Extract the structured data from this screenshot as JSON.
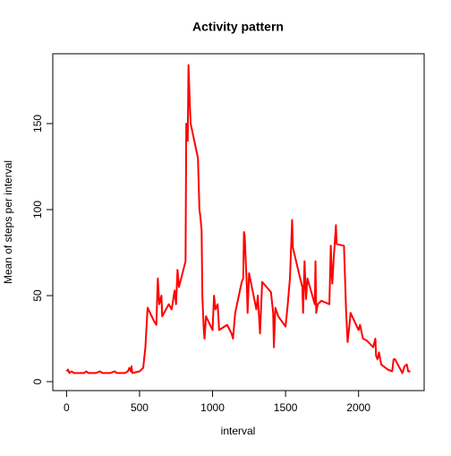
{
  "chart_data": {
    "type": "line",
    "title": "Activity pattern",
    "x_label": "interval",
    "y_label": "Mean of steps per interval",
    "x": [
      0,
      10,
      20,
      35,
      50,
      100,
      120,
      135,
      150,
      200,
      230,
      245,
      300,
      330,
      345,
      400,
      420,
      430,
      440,
      445,
      450,
      500,
      525,
      540,
      555,
      600,
      615,
      625,
      635,
      650,
      655,
      700,
      720,
      740,
      750,
      760,
      770,
      800,
      815,
      820,
      830,
      835,
      845,
      850,
      900,
      910,
      915,
      925,
      930,
      940,
      945,
      955,
      1000,
      1010,
      1020,
      1035,
      1045,
      1100,
      1130,
      1140,
      1155,
      1200,
      1210,
      1215,
      1220,
      1235,
      1240,
      1250,
      1300,
      1310,
      1325,
      1340,
      1400,
      1415,
      1420,
      1430,
      1450,
      1500,
      1515,
      1530,
      1545,
      1550,
      1600,
      1615,
      1620,
      1630,
      1640,
      1650,
      1700,
      1705,
      1710,
      1720,
      1745,
      1800,
      1810,
      1815,
      1820,
      1830,
      1845,
      1850,
      1900,
      1915,
      1925,
      1940,
      1945,
      2000,
      2010,
      2030,
      2055,
      2100,
      2115,
      2120,
      2130,
      2140,
      2155,
      2200,
      2230,
      2240,
      2250,
      2300,
      2315,
      2330,
      2340,
      2355
    ],
    "series": [
      {
        "name": "steps",
        "color": "#ff0000",
        "values": [
          6,
          7,
          5,
          6,
          5,
          5,
          5,
          6,
          5,
          5,
          6,
          5,
          5,
          6,
          5,
          5,
          6,
          8,
          6,
          9,
          5,
          6,
          8,
          20,
          43,
          35,
          33,
          60,
          45,
          50,
          38,
          45,
          42,
          53,
          45,
          65,
          55,
          65,
          70,
          150,
          140,
          184,
          160,
          150,
          130,
          100,
          97,
          88,
          50,
          30,
          25,
          38,
          30,
          50,
          42,
          45,
          30,
          33,
          28,
          25,
          40,
          58,
          60,
          87,
          85,
          55,
          40,
          63,
          42,
          50,
          28,
          58,
          52,
          40,
          20,
          43,
          38,
          32,
          45,
          60,
          94,
          78,
          60,
          55,
          40,
          70,
          48,
          60,
          45,
          70,
          40,
          45,
          47,
          45,
          79,
          65,
          57,
          72,
          91,
          80,
          79,
          40,
          23,
          35,
          40,
          30,
          33,
          25,
          24,
          20,
          25,
          15,
          13,
          17,
          10,
          7,
          6,
          13,
          13,
          5,
          9,
          10,
          6,
          6
        ]
      }
    ],
    "xlim": [
      -94.2,
      2449.2
    ],
    "ylim": [
      -5.2,
      190.6
    ],
    "xticks": [
      0,
      500,
      1000,
      1500,
      2000
    ],
    "yticks": [
      0,
      50,
      100,
      150
    ]
  }
}
